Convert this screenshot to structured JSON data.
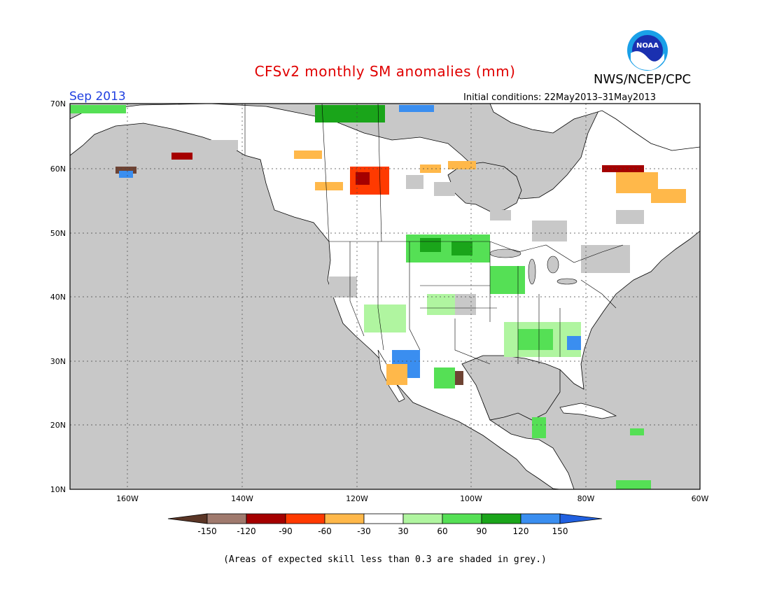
{
  "header": {
    "title": "CFSv2 monthly SM anomalies (mm)",
    "agency": "NWS/NCEP/CPC",
    "logo_text": "NOAA",
    "period": "Sep 2013",
    "initial_conditions": "Initial conditions: 22May2013–31May2013"
  },
  "map": {
    "lat_labels": [
      "70N",
      "60N",
      "50N",
      "40N",
      "30N",
      "20N",
      "10N"
    ],
    "lon_labels": [
      "160W",
      "140W",
      "120W",
      "100W",
      "80W",
      "60W"
    ],
    "region": "North America"
  },
  "colorbar": {
    "tick_labels": [
      "-150",
      "-120",
      "-90",
      "-60",
      "-30",
      "30",
      "60",
      "90",
      "120",
      "150"
    ],
    "colors": [
      "#6e4333",
      "#a07a6e",
      "#a50000",
      "#ff3a00",
      "#ffb84a",
      "#ffffff",
      "#b0f5a0",
      "#55e055",
      "#1aa51a",
      "#3a8ef0",
      "#2060e0"
    ],
    "units": "mm"
  },
  "footer": {
    "note": "(Areas of expected skill less than 0.3 are shaded in grey.)"
  },
  "colors": {
    "title": "#e00000",
    "period": "#2040e0",
    "skill_grey": "#c8c8c8"
  }
}
